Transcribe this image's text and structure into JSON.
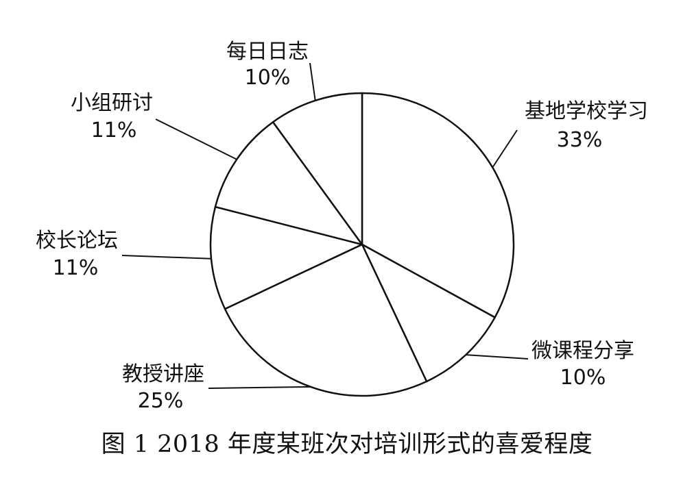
{
  "chart_data": {
    "type": "pie",
    "title": "",
    "caption": "图 1  2018 年度某班次对培训形式的喜爱程度",
    "slices": [
      {
        "label": "基地学校学习",
        "value": 33,
        "percent_text": "33%"
      },
      {
        "label": "微课程分享",
        "value": 10,
        "percent_text": "10%"
      },
      {
        "label": "教授讲座",
        "value": 25,
        "percent_text": "25%"
      },
      {
        "label": "校长论坛",
        "value": 11,
        "percent_text": "11%"
      },
      {
        "label": "小组研讨",
        "value": 11,
        "percent_text": "11%"
      },
      {
        "label": "每日日志",
        "value": 10,
        "percent_text": "10%"
      }
    ],
    "start_angle": "12 o'clock",
    "direction": "clockwise",
    "slice_fill": "#ffffff",
    "stroke_color": "#111111",
    "legend": "none"
  }
}
